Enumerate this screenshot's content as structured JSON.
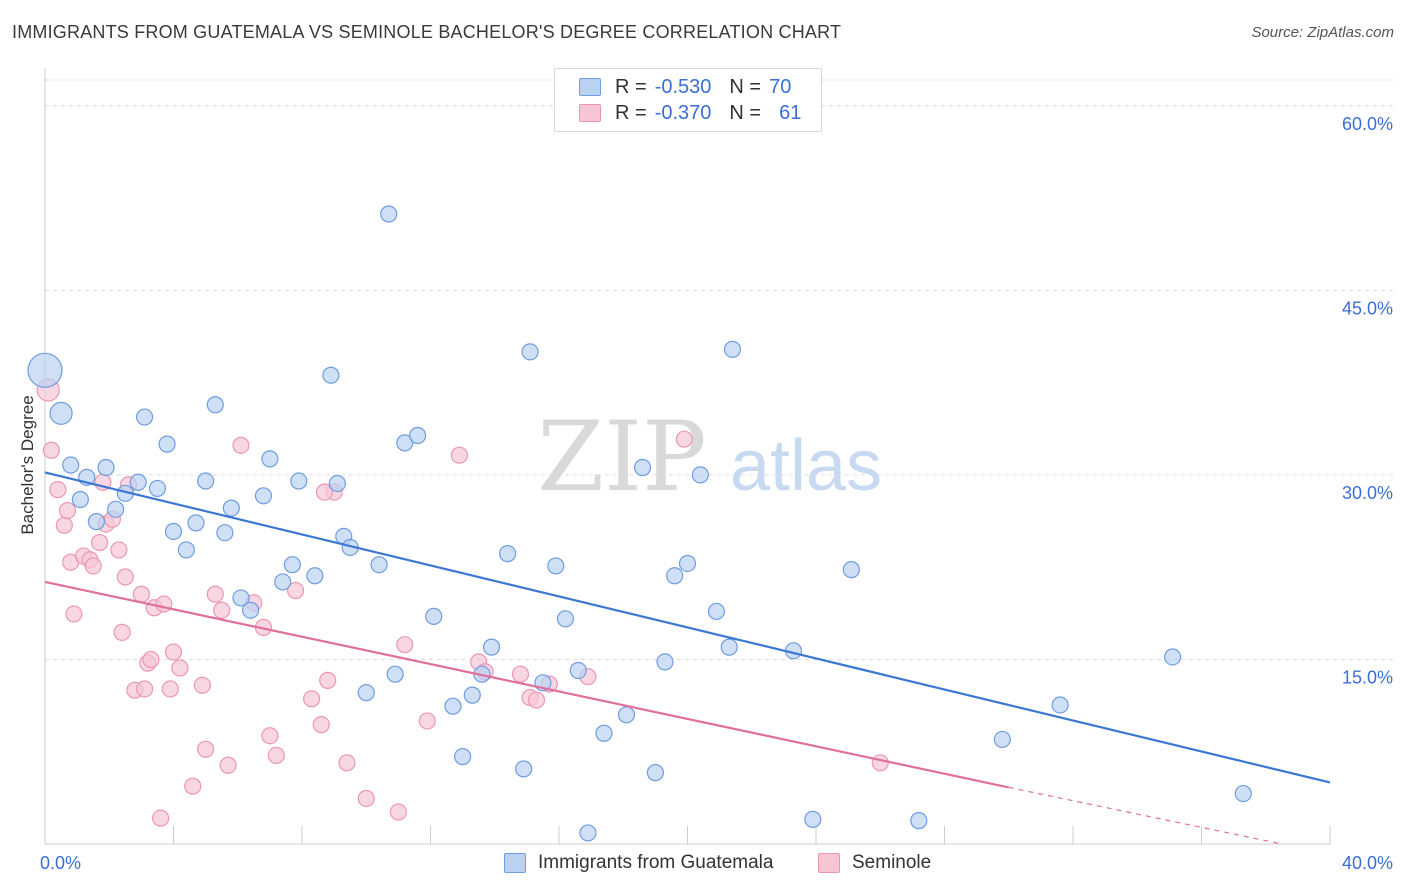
{
  "title": "IMMIGRANTS FROM GUATEMALA VS SEMINOLE BACHELOR'S DEGREE CORRELATION CHART",
  "source": "Source: ZipAtlas.com",
  "watermark": {
    "zip": "ZIP",
    "atlas": "atlas"
  },
  "legend": {
    "rows": [
      {
        "r_label": "R =",
        "r_value": "-0.530",
        "n_label": "N =",
        "n_value": "70"
      },
      {
        "r_label": "R =",
        "r_value": "-0.370",
        "n_label": "N =",
        "n_value": "61"
      }
    ]
  },
  "colors": {
    "blue_fill": "#b9d2f2",
    "blue_stroke": "#6f9de0",
    "blue_line": "#3a78d4",
    "pink_fill": "#f7c6d5",
    "pink_stroke": "#eb97b3",
    "pink_line": "#e0709a",
    "grid": "#dddddd",
    "tick_text": "#3b6fd6"
  },
  "chart_data": {
    "type": "scatter",
    "title": "IMMIGRANTS FROM GUATEMALA VS SEMINOLE BACHELOR'S DEGREE CORRELATION CHART",
    "xlabel": "",
    "ylabel": "Bachelor's Degree",
    "xlim": [
      0,
      40
    ],
    "ylim": [
      0,
      62.5
    ],
    "x_tick_labels": [
      "0.0%",
      "40.0%"
    ],
    "y_ticks": [
      15,
      30,
      45,
      60
    ],
    "y_tick_labels": [
      "15.0%",
      "30.0%",
      "45.0%",
      "60.0%"
    ],
    "grid": true,
    "legend_position": "bottom",
    "series": [
      {
        "name": "Immigrants from Guatemala",
        "r": -0.53,
        "n": 70,
        "trend": {
          "x0": 0,
          "y0": 30.2,
          "x1": 40,
          "y1": 5.0
        },
        "points": [
          [
            0.0,
            38.5,
            3
          ],
          [
            0.5,
            35.0,
            2
          ],
          [
            0.8,
            30.8,
            1
          ],
          [
            1.1,
            28.0,
            1
          ],
          [
            1.3,
            29.8,
            1
          ],
          [
            1.6,
            26.2,
            1
          ],
          [
            1.9,
            30.6,
            1
          ],
          [
            2.2,
            27.2,
            1
          ],
          [
            2.5,
            28.5,
            1
          ],
          [
            2.9,
            29.4,
            1
          ],
          [
            3.1,
            34.7,
            1
          ],
          [
            3.5,
            28.9,
            1
          ],
          [
            3.8,
            32.5,
            1
          ],
          [
            4.0,
            25.4,
            1
          ],
          [
            4.4,
            23.9,
            1
          ],
          [
            4.7,
            26.1,
            1
          ],
          [
            5.0,
            29.5,
            1
          ],
          [
            5.3,
            35.7,
            1
          ],
          [
            5.6,
            25.3,
            1
          ],
          [
            5.8,
            27.3,
            1
          ],
          [
            6.1,
            20.0,
            1
          ],
          [
            6.4,
            19.0,
            1
          ],
          [
            6.8,
            28.3,
            1
          ],
          [
            7.0,
            31.3,
            1
          ],
          [
            7.4,
            21.3,
            1
          ],
          [
            7.7,
            22.7,
            1
          ],
          [
            7.9,
            29.5,
            1
          ],
          [
            8.4,
            21.8,
            1
          ],
          [
            8.9,
            38.1,
            1
          ],
          [
            9.1,
            29.3,
            1
          ],
          [
            9.3,
            25.0,
            1
          ],
          [
            9.5,
            24.1,
            1
          ],
          [
            10.0,
            12.3,
            1
          ],
          [
            10.4,
            22.7,
            1
          ],
          [
            10.9,
            13.8,
            1
          ],
          [
            11.2,
            32.6,
            1
          ],
          [
            11.6,
            33.2,
            1
          ],
          [
            12.1,
            18.5,
            1
          ],
          [
            12.7,
            11.2,
            1
          ],
          [
            13.0,
            7.1,
            1
          ],
          [
            13.3,
            12.1,
            1
          ],
          [
            13.6,
            13.8,
            1
          ],
          [
            13.9,
            16.0,
            1
          ],
          [
            14.4,
            23.6,
            1
          ],
          [
            14.9,
            6.1,
            1
          ],
          [
            15.1,
            40.0,
            1
          ],
          [
            15.5,
            13.1,
            1
          ],
          [
            15.9,
            22.6,
            1
          ],
          [
            16.2,
            18.3,
            1
          ],
          [
            16.6,
            14.1,
            1
          ],
          [
            16.9,
            0.9,
            1
          ],
          [
            17.4,
            9.0,
            1
          ],
          [
            18.1,
            10.5,
            1
          ],
          [
            18.6,
            30.6,
            1
          ],
          [
            19.0,
            5.8,
            1
          ],
          [
            19.3,
            14.8,
            1
          ],
          [
            19.6,
            21.8,
            1
          ],
          [
            20.0,
            22.8,
            1
          ],
          [
            20.4,
            30.0,
            1
          ],
          [
            20.9,
            18.9,
            1
          ],
          [
            21.3,
            16.0,
            1
          ],
          [
            21.4,
            40.2,
            1
          ],
          [
            23.3,
            15.7,
            1
          ],
          [
            23.9,
            2.0,
            1
          ],
          [
            25.1,
            22.3,
            1
          ],
          [
            27.2,
            1.9,
            1
          ],
          [
            29.8,
            8.5,
            1
          ],
          [
            31.6,
            11.3,
            1
          ],
          [
            35.1,
            15.2,
            1
          ],
          [
            37.3,
            4.1,
            1
          ],
          [
            10.7,
            51.2,
            1
          ]
        ]
      },
      {
        "name": "Seminole",
        "r": -0.37,
        "n": 61,
        "trend": {
          "x0": 0,
          "y0": 21.3,
          "x1": 30.0,
          "y1": 4.6,
          "dash_x1": 38.5,
          "dash_y1": 0.0
        },
        "points": [
          [
            0.1,
            36.9,
            2
          ],
          [
            0.2,
            32.0,
            1
          ],
          [
            0.4,
            28.8,
            1
          ],
          [
            0.6,
            25.9,
            1
          ],
          [
            0.7,
            27.1,
            1
          ],
          [
            0.8,
            22.9,
            1
          ],
          [
            0.9,
            18.7,
            1
          ],
          [
            1.2,
            23.4,
            1
          ],
          [
            1.4,
            23.1,
            1
          ],
          [
            1.5,
            22.6,
            1
          ],
          [
            1.7,
            24.5,
            1
          ],
          [
            1.8,
            29.4,
            1
          ],
          [
            1.9,
            26.0,
            1
          ],
          [
            2.1,
            26.4,
            1
          ],
          [
            2.3,
            23.9,
            1
          ],
          [
            2.4,
            17.2,
            1
          ],
          [
            2.5,
            21.7,
            1
          ],
          [
            2.6,
            29.2,
            1
          ],
          [
            2.8,
            12.5,
            1
          ],
          [
            3.0,
            20.3,
            1
          ],
          [
            3.1,
            12.6,
            1
          ],
          [
            3.2,
            14.7,
            1
          ],
          [
            3.3,
            15.0,
            1
          ],
          [
            3.4,
            19.2,
            1
          ],
          [
            3.6,
            2.1,
            1
          ],
          [
            3.7,
            19.5,
            1
          ],
          [
            3.9,
            12.6,
            1
          ],
          [
            4.0,
            15.6,
            1
          ],
          [
            4.2,
            14.3,
            1
          ],
          [
            4.6,
            4.7,
            1
          ],
          [
            4.9,
            12.9,
            1
          ],
          [
            5.0,
            7.7,
            1
          ],
          [
            5.3,
            20.3,
            1
          ],
          [
            5.5,
            19.0,
            1
          ],
          [
            5.7,
            6.4,
            1
          ],
          [
            6.1,
            32.4,
            1
          ],
          [
            6.5,
            19.6,
            1
          ],
          [
            6.8,
            17.6,
            1
          ],
          [
            7.0,
            8.8,
            1
          ],
          [
            7.2,
            7.2,
            1
          ],
          [
            7.8,
            20.6,
            1
          ],
          [
            8.3,
            11.8,
            1
          ],
          [
            8.6,
            9.7,
            1
          ],
          [
            8.8,
            13.3,
            1
          ],
          [
            9.0,
            28.6,
            1
          ],
          [
            9.4,
            6.6,
            1
          ],
          [
            10.0,
            3.7,
            1
          ],
          [
            11.0,
            2.6,
            1
          ],
          [
            11.2,
            16.2,
            1
          ],
          [
            11.9,
            10.0,
            1
          ],
          [
            12.9,
            31.6,
            1
          ],
          [
            13.5,
            14.8,
            1
          ],
          [
            13.7,
            14.0,
            1
          ],
          [
            14.8,
            13.8,
            1
          ],
          [
            15.1,
            11.9,
            1
          ],
          [
            15.3,
            11.7,
            1
          ],
          [
            15.7,
            13.0,
            1
          ],
          [
            16.9,
            13.6,
            1
          ],
          [
            19.9,
            32.9,
            1
          ],
          [
            26.0,
            6.6,
            1
          ],
          [
            8.7,
            28.6,
            1
          ]
        ]
      }
    ]
  }
}
